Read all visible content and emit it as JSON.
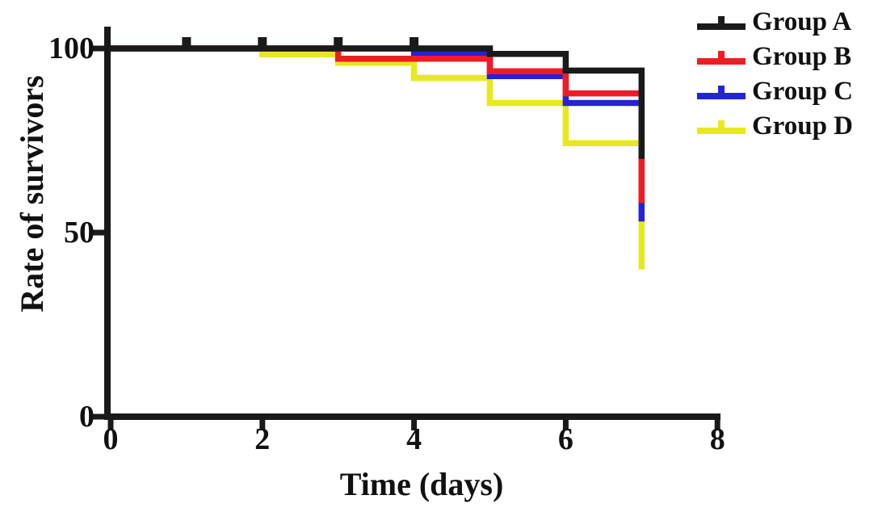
{
  "figure": {
    "background": "#ffffff",
    "text_color": "#111111"
  },
  "chart_data": {
    "type": "step",
    "subtype": "kaplan-meier-survival",
    "title": "",
    "xlabel": "Time (days)",
    "ylabel": "Rate of survivors",
    "xlim": [
      0,
      8
    ],
    "ylim": [
      0,
      100
    ],
    "xticks": [
      0,
      2,
      4,
      6,
      8
    ],
    "yticks": [
      0,
      50,
      100
    ],
    "grid": false,
    "legend_position": "top-right",
    "axis_color": "#1a1a1a",
    "series": [
      {
        "name": "Group A",
        "color": "#1a1a1a",
        "points": [
          [
            0,
            100
          ],
          [
            5,
            98.5
          ],
          [
            6,
            94
          ],
          [
            7,
            70
          ]
        ],
        "censor_marks_days": [
          1,
          2,
          3,
          4
        ],
        "final_value": 70
      },
      {
        "name": "Group B",
        "color": "#ee1c25",
        "points": [
          [
            0,
            100
          ],
          [
            3,
            97.2
          ],
          [
            5,
            93.8
          ],
          [
            6,
            87.8
          ],
          [
            7,
            58
          ]
        ],
        "censor_marks_days": [],
        "final_value": 58
      },
      {
        "name": "Group C",
        "color": "#2323d8",
        "points": [
          [
            0,
            100
          ],
          [
            4,
            98.5
          ],
          [
            5,
            92.5
          ],
          [
            6,
            85.2
          ],
          [
            7,
            53
          ]
        ],
        "censor_marks_days": [],
        "final_value": 53
      },
      {
        "name": "Group D",
        "color": "#e8e81e",
        "points": [
          [
            0,
            100
          ],
          [
            2,
            98.4
          ],
          [
            3,
            96.1
          ],
          [
            4,
            92
          ],
          [
            5,
            85.2
          ],
          [
            6,
            74.3
          ],
          [
            7,
            40
          ]
        ],
        "censor_marks_days": [],
        "final_value": 40
      }
    ],
    "draw_order": [
      3,
      2,
      1,
      0
    ]
  }
}
